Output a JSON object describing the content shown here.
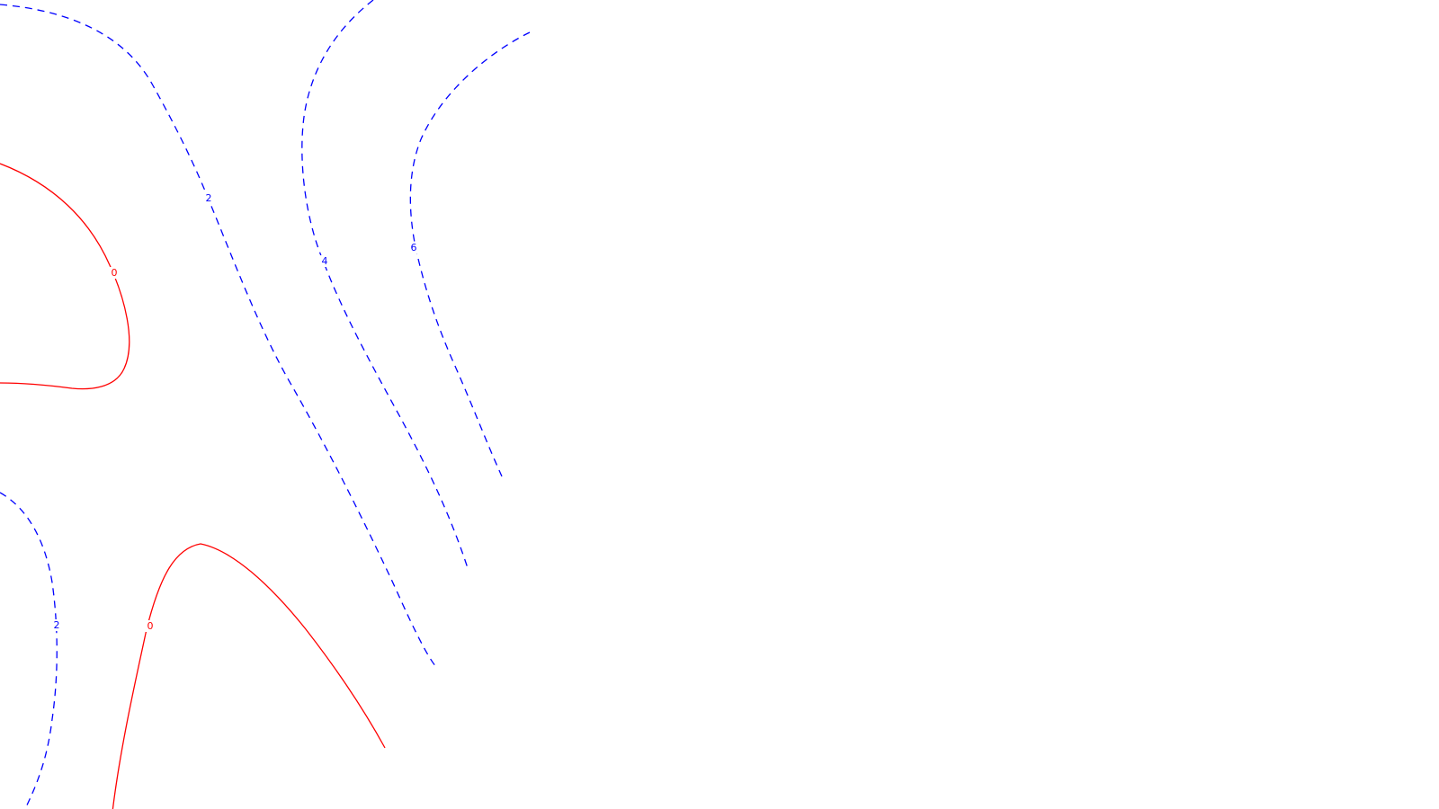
{
  "chart_data": {
    "type": "contour",
    "title": "",
    "xlabel": "",
    "ylabel": "",
    "grid": false,
    "legend": "none",
    "colors": {
      "negative": "#0000ff",
      "zero": "#ff0000",
      "background": "#ffffff"
    },
    "levels": [
      {
        "value": "0",
        "label": "0",
        "style": "solid",
        "color": "#ff0000"
      },
      {
        "value": "2",
        "label": "2",
        "style": "dashed",
        "color": "#0000ff"
      },
      {
        "value": "4",
        "label": "4",
        "style": "dashed",
        "color": "#0000ff"
      },
      {
        "value": "6",
        "label": "6",
        "style": "dashed",
        "color": "#0000ff"
      }
    ]
  }
}
